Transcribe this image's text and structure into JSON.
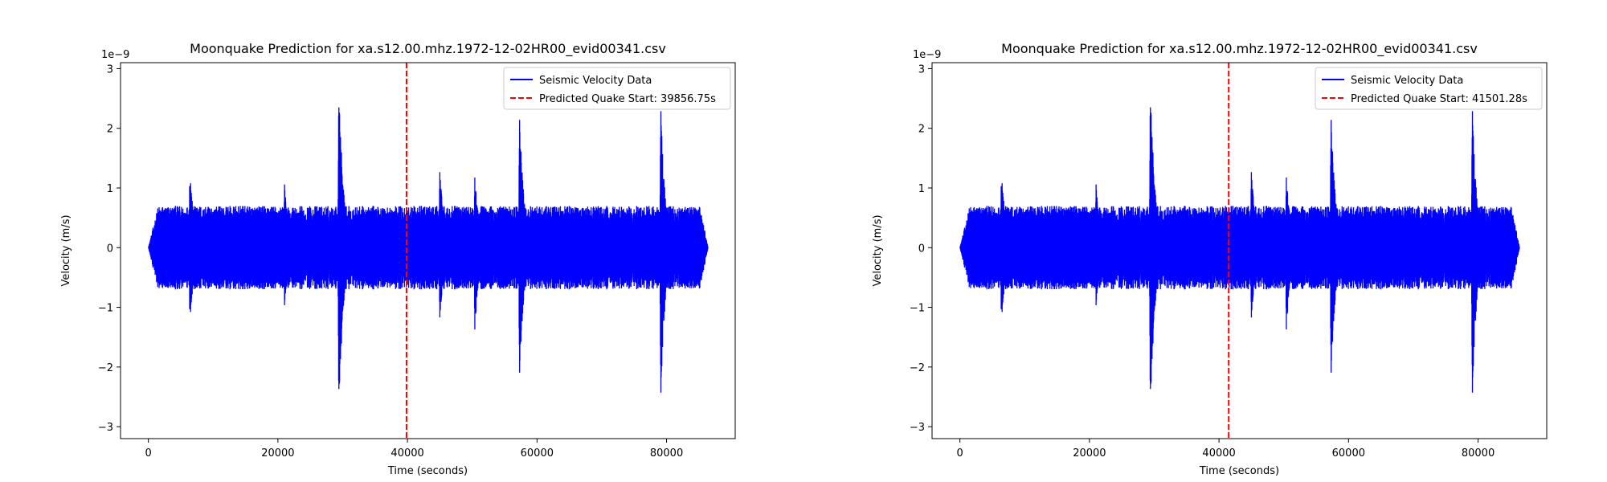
{
  "chart_data": [
    {
      "type": "line",
      "title": "Moonquake Prediction for xa.s12.00.mhz.1972-12-02HR00_evid00341.csv",
      "xlabel": "Time (seconds)",
      "ylabel": "Velocity (m/s)",
      "y_offset_label": "1e−9",
      "xlim": [
        -4300,
        90600
      ],
      "ylim": [
        -3.2,
        3.1
      ],
      "x_ticks": [
        0,
        20000,
        40000,
        60000,
        80000
      ],
      "x_tick_labels": [
        "0",
        "20000",
        "40000",
        "60000",
        "80000"
      ],
      "y_ticks": [
        -3,
        -2,
        -1,
        0,
        1,
        2,
        3
      ],
      "y_tick_labels": [
        "−3",
        "−2",
        "−1",
        "0",
        "1",
        "2",
        "3"
      ],
      "grid": false,
      "legend_position": "top-right",
      "series": [
        {
          "name": "Seismic Velocity Data",
          "color": "#0000ff",
          "style": "solid",
          "x_range": [
            0,
            86400
          ],
          "baseline_amplitude": 0.7,
          "events": [
            {
              "t": 6400,
              "peak": 1.35,
              "trough": -1.35
            },
            {
              "t": 21000,
              "peak": 1.1,
              "trough": -1.0
            },
            {
              "t": 29400,
              "peak": 2.88,
              "trough": -2.9
            },
            {
              "t": 45000,
              "peak": 1.3,
              "trough": -1.2
            },
            {
              "t": 50400,
              "peak": 1.2,
              "trough": -1.4
            },
            {
              "t": 57300,
              "peak": 2.33,
              "trough": -2.28
            },
            {
              "t": 79100,
              "peak": 2.42,
              "trough": -2.57
            }
          ]
        },
        {
          "name": "Predicted Quake Start: 39856.75s",
          "color": "#ff0000",
          "style": "dashed",
          "x": 39856.75
        }
      ]
    },
    {
      "type": "line",
      "title": "Moonquake Prediction for xa.s12.00.mhz.1972-12-02HR00_evid00341.csv",
      "xlabel": "Time (seconds)",
      "ylabel": "Velocity (m/s)",
      "y_offset_label": "1e−9",
      "xlim": [
        -4300,
        90600
      ],
      "ylim": [
        -3.2,
        3.1
      ],
      "x_ticks": [
        0,
        20000,
        40000,
        60000,
        80000
      ],
      "x_tick_labels": [
        "0",
        "20000",
        "40000",
        "60000",
        "80000"
      ],
      "y_ticks": [
        -3,
        -2,
        -1,
        0,
        1,
        2,
        3
      ],
      "y_tick_labels": [
        "−3",
        "−2",
        "−1",
        "0",
        "1",
        "2",
        "3"
      ],
      "grid": false,
      "legend_position": "top-right",
      "series": [
        {
          "name": "Seismic Velocity Data",
          "color": "#0000ff",
          "style": "solid",
          "x_range": [
            0,
            86400
          ],
          "baseline_amplitude": 0.7,
          "events": [
            {
              "t": 6400,
              "peak": 1.35,
              "trough": -1.35
            },
            {
              "t": 21000,
              "peak": 1.1,
              "trough": -1.0
            },
            {
              "t": 29400,
              "peak": 2.88,
              "trough": -2.9
            },
            {
              "t": 45000,
              "peak": 1.3,
              "trough": -1.2
            },
            {
              "t": 50400,
              "peak": 1.2,
              "trough": -1.4
            },
            {
              "t": 57300,
              "peak": 2.33,
              "trough": -2.28
            },
            {
              "t": 79100,
              "peak": 2.42,
              "trough": -2.57
            }
          ]
        },
        {
          "name": "Predicted Quake Start: 41501.28s",
          "color": "#ff0000",
          "style": "dashed",
          "x": 41501.28
        }
      ]
    }
  ]
}
